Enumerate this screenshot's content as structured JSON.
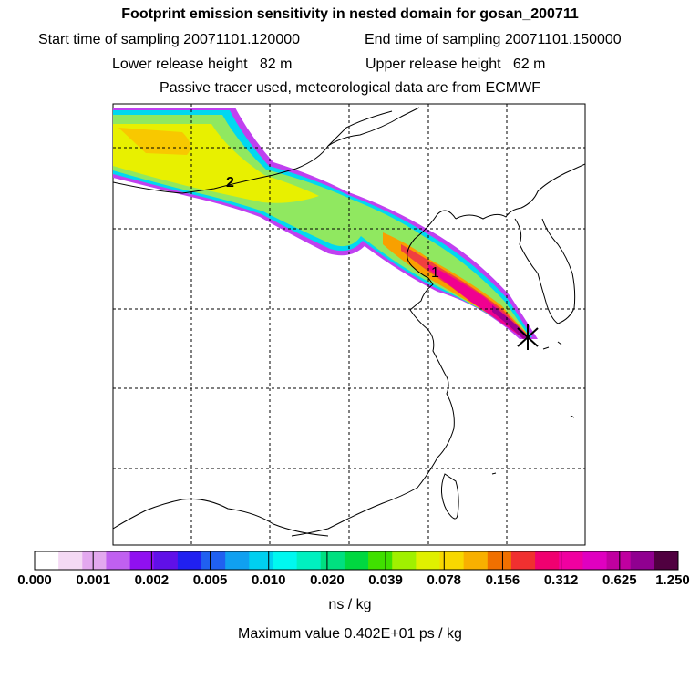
{
  "header": {
    "title": "Footprint emission sensitivity in nested domain for gosan_200711",
    "start_label": "Start time of sampling 20071101.120000",
    "end_label": "End time of sampling 20071101.150000",
    "lower_label": "Lower release height   82 m",
    "upper_label": "Upper release height   62 m",
    "tracer_line": "Passive tracer used, meteorological data are from ECMWF"
  },
  "map": {
    "labels": [
      "2",
      "1"
    ],
    "receptor": "gosan"
  },
  "colorbar": {
    "ticks": [
      "0.000",
      "0.001",
      "0.002",
      "0.005",
      "0.010",
      "0.020",
      "0.039",
      "0.078",
      "0.156",
      "0.312",
      "0.625",
      "1.250"
    ],
    "colors": [
      "#ffffff",
      "#f4d9f4",
      "#e3a8ef",
      "#c060f0",
      "#9010f0",
      "#6010e8",
      "#2020f0",
      "#2060f0",
      "#10a0f0",
      "#00d0f0",
      "#00f8f0",
      "#00f0c0",
      "#00e080",
      "#00d840",
      "#40e000",
      "#a0f000",
      "#e0f000",
      "#f8d800",
      "#f8b000",
      "#f07000",
      "#f03030",
      "#f00070",
      "#f000a0",
      "#e000c0",
      "#c000a0",
      "#900090",
      "#500040"
    ],
    "units": "ns / kg"
  },
  "max_value": "Maximum value  0.402E+01 ps / kg"
}
